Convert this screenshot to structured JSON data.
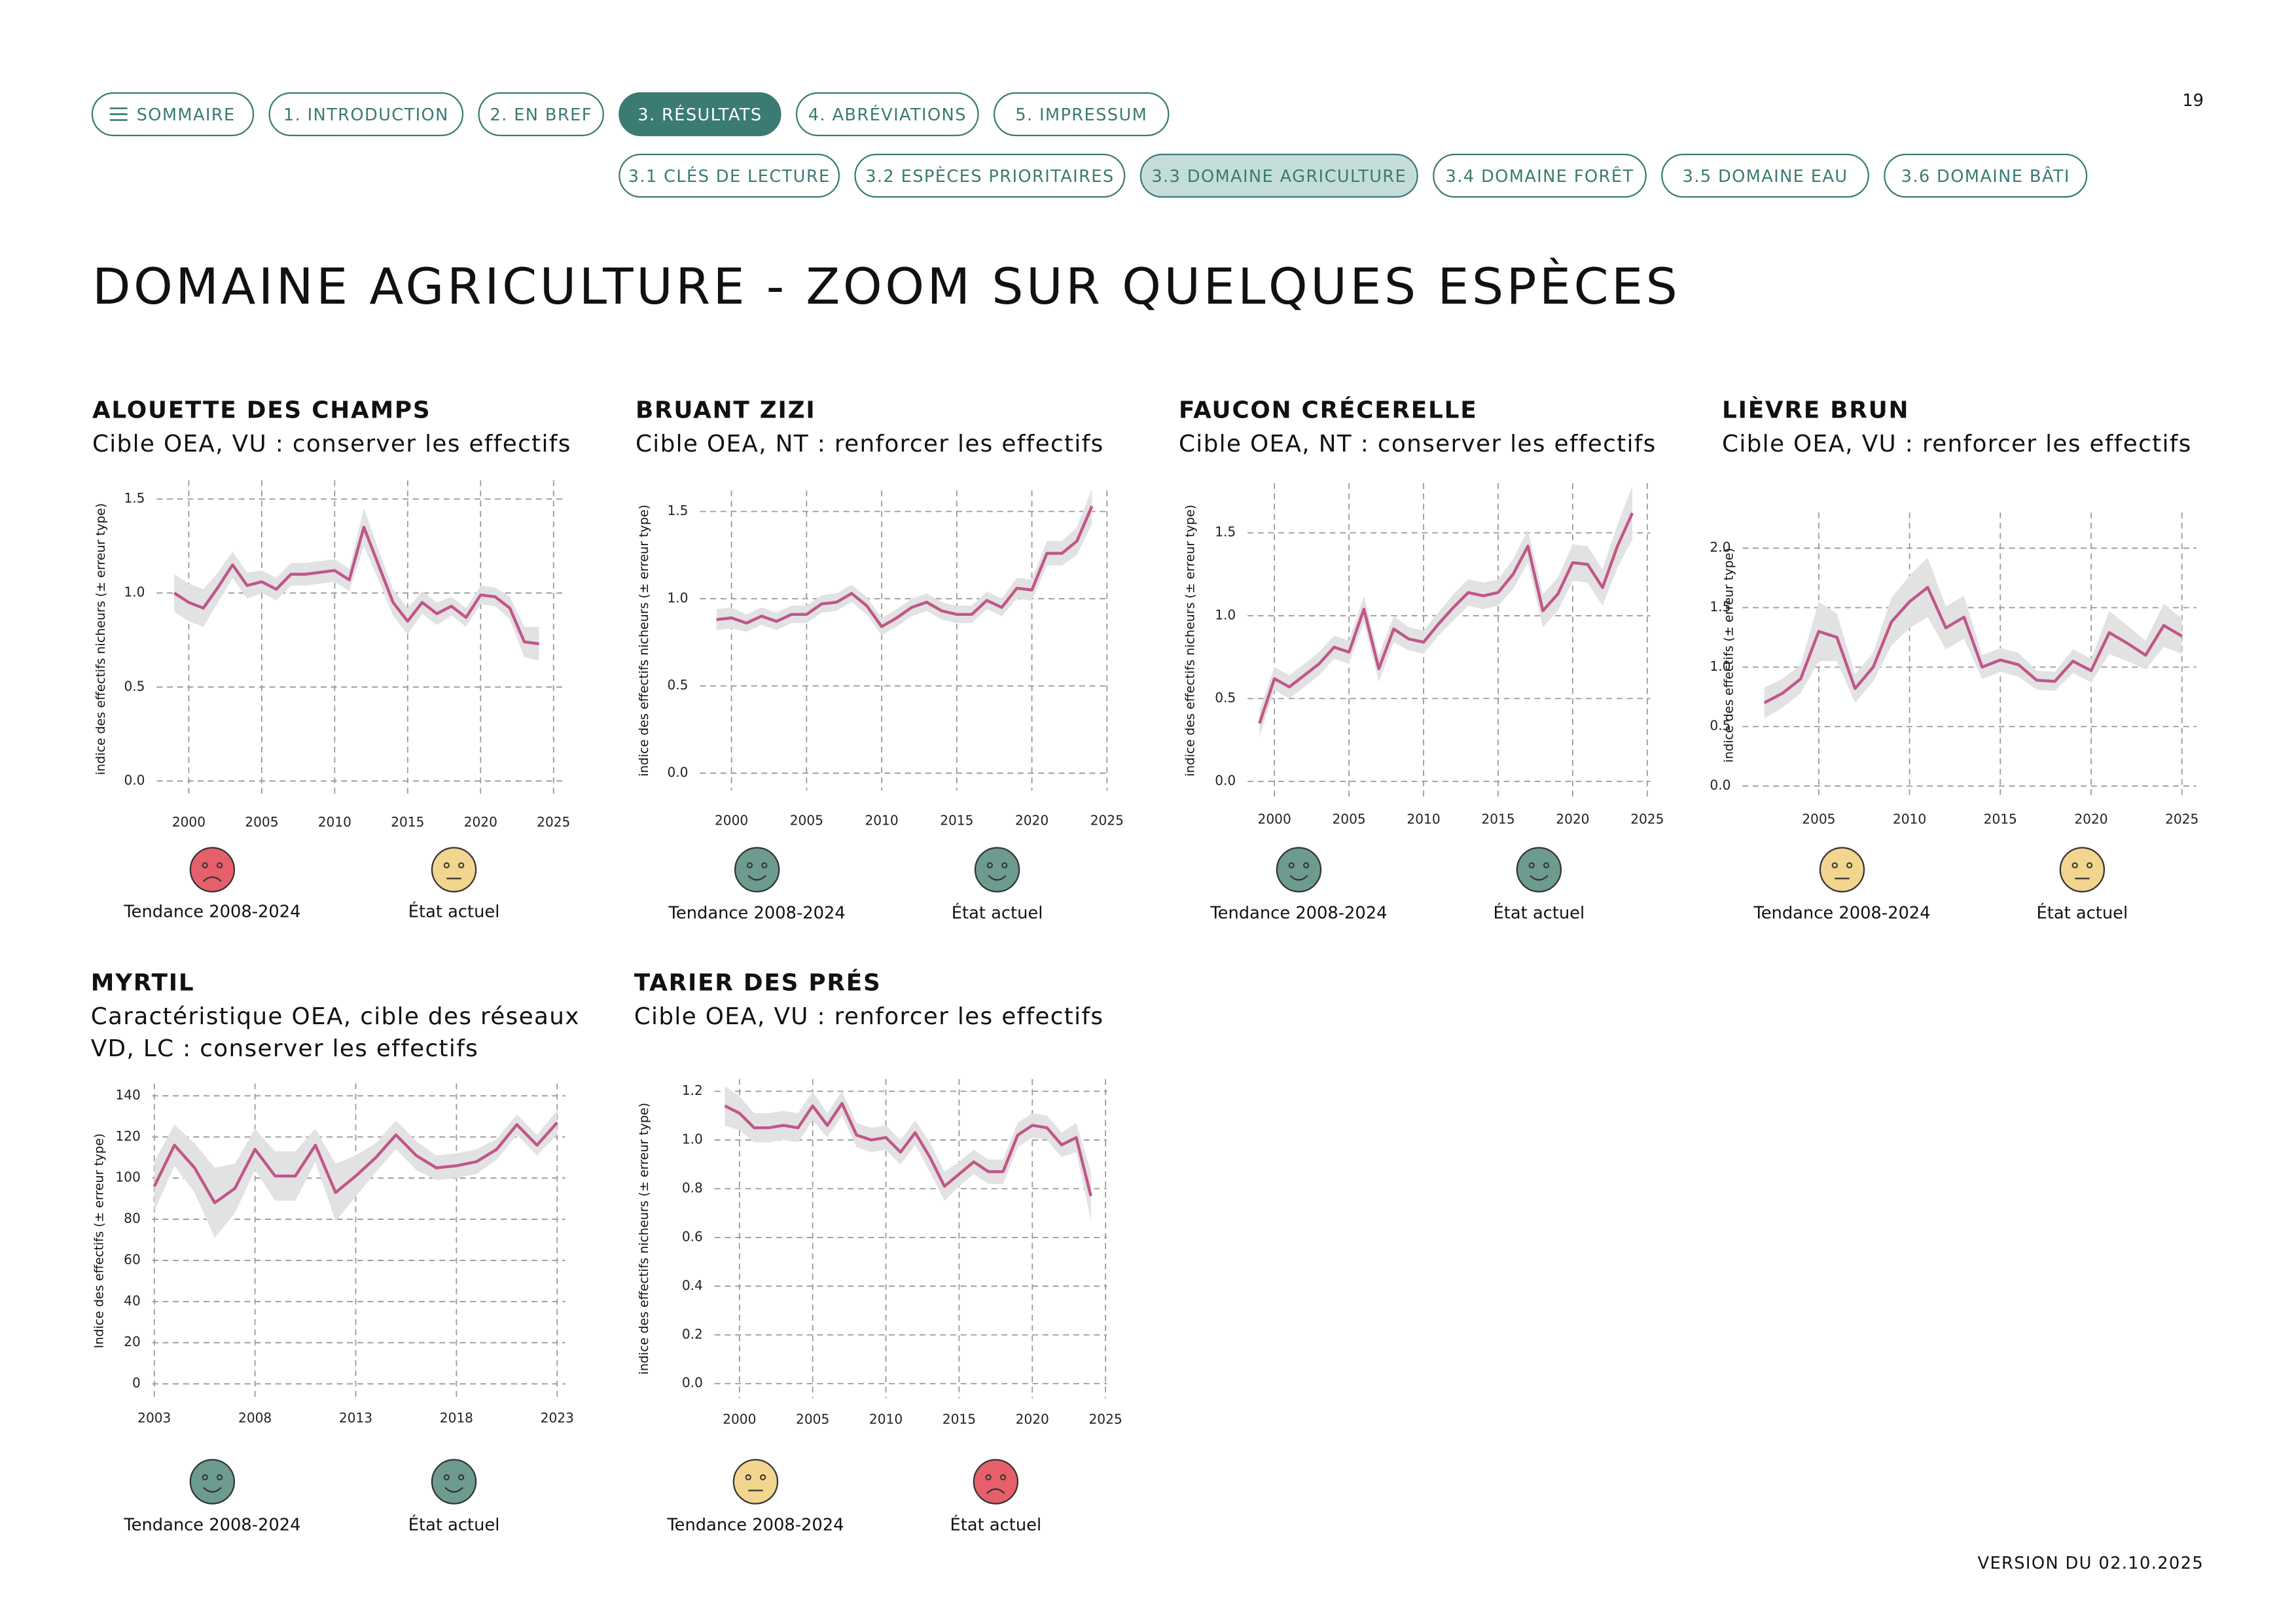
{
  "page_number": "19",
  "nav": {
    "main": [
      {
        "label": "SOMMAIRE",
        "active": false
      },
      {
        "label": "1. INTRODUCTION",
        "active": false
      },
      {
        "label": "2. EN BREF",
        "active": false
      },
      {
        "label": "3. RÉSULTATS",
        "active": true
      },
      {
        "label": "4. ABRÉVIATIONS",
        "active": false
      },
      {
        "label": "5. IMPRESSUM",
        "active": false
      }
    ],
    "sub": [
      {
        "label": "3.1 CLÉS DE LECTURE",
        "active": false
      },
      {
        "label": "3.2 ESPÈCES PRIORITAIRES",
        "active": false
      },
      {
        "label": "3.3 DOMAINE AGRICULTURE",
        "active": true
      },
      {
        "label": "3.4 DOMAINE FORÊT",
        "active": false
      },
      {
        "label": "3.5 DOMAINE EAU",
        "active": false
      },
      {
        "label": "3.6 DOMAINE BÂTI",
        "active": false
      }
    ]
  },
  "title": "DOMAINE AGRICULTURE - ZOOM SUR QUELQUES ESPÈCES",
  "footer": "VERSION DU 02.10.2025",
  "chart_data": [
    {
      "type": "line",
      "title": "ALOUETTE DES CHAMPS",
      "subtitle": [
        "Cible OEA, VU : conserver les effectifs"
      ],
      "y_label": "indice des effectifs nicheurs (± erreur type)",
      "color": "#c0568a",
      "band_color": "#e2e2e2",
      "grid": true,
      "x": [
        1999,
        2000,
        2001,
        2002,
        2003,
        2004,
        2005,
        2006,
        2007,
        2008,
        2009,
        2010,
        2011,
        2012,
        2013,
        2014,
        2015,
        2016,
        2017,
        2018,
        2019,
        2020,
        2021,
        2022,
        2023,
        2024
      ],
      "values": [
        1.0,
        0.95,
        0.92,
        1.03,
        1.15,
        1.04,
        1.06,
        1.02,
        1.1,
        1.1,
        1.11,
        1.12,
        1.07,
        1.35,
        1.15,
        0.95,
        0.85,
        0.95,
        0.89,
        0.93,
        0.87,
        0.99,
        0.98,
        0.92,
        0.74,
        0.73
      ],
      "errors": [
        0.1,
        0.1,
        0.1,
        0.08,
        0.07,
        0.07,
        0.06,
        0.06,
        0.06,
        0.06,
        0.06,
        0.06,
        0.06,
        0.1,
        0.08,
        0.07,
        0.07,
        0.06,
        0.06,
        0.05,
        0.05,
        0.05,
        0.05,
        0.06,
        0.08,
        0.09
      ],
      "xlim": [
        1997.8,
        2025.9
      ],
      "ylim": [
        -0.09,
        1.6
      ],
      "xticks": [
        2000,
        2005,
        2010,
        2015,
        2020,
        2025
      ],
      "yticks": [
        {
          "value": 0,
          "label": "0.0"
        },
        0.5,
        {
          "value": 1,
          "label": "1.0"
        },
        1.5
      ],
      "indicators": [
        {
          "label": "Tendance  2008-2024",
          "mood": "sad",
          "color": "#e5606a"
        },
        {
          "label": "État actuel",
          "mood": "neutral",
          "color": "#f2d58e"
        }
      ]
    },
    {
      "type": "line",
      "title": "BRUANT ZIZI",
      "subtitle": [
        "Cible OEA, NT : renforcer les effectifs"
      ],
      "y_label": "indice des effectifs nicheurs (± erreur type)",
      "color": "#c0568a",
      "band_color": "#e2e2e2",
      "grid": true,
      "x": [
        1999,
        2000,
        2001,
        2002,
        2003,
        2004,
        2005,
        2006,
        2007,
        2008,
        2009,
        2010,
        2011,
        2012,
        2013,
        2014,
        2015,
        2016,
        2017,
        2018,
        2019,
        2020,
        2021,
        2022,
        2023,
        2024
      ],
      "values": [
        0.88,
        0.89,
        0.86,
        0.9,
        0.87,
        0.91,
        0.91,
        0.97,
        0.98,
        1.03,
        0.96,
        0.84,
        0.89,
        0.95,
        0.98,
        0.93,
        0.91,
        0.91,
        0.99,
        0.95,
        1.06,
        1.05,
        1.26,
        1.26,
        1.33,
        1.53
      ],
      "errors": [
        0.06,
        0.06,
        0.05,
        0.05,
        0.05,
        0.05,
        0.05,
        0.05,
        0.05,
        0.05,
        0.05,
        0.05,
        0.05,
        0.05,
        0.05,
        0.05,
        0.05,
        0.05,
        0.05,
        0.05,
        0.06,
        0.06,
        0.07,
        0.07,
        0.08,
        0.1
      ],
      "xlim": [
        1997.9,
        2025.1
      ],
      "ylim": [
        -0.1,
        1.62
      ],
      "xticks": [
        2000,
        2005,
        2010,
        2015,
        2020,
        2025
      ],
      "yticks": [
        {
          "value": 0,
          "label": "0.0"
        },
        0.5,
        {
          "value": 1,
          "label": "1.0"
        },
        1.5
      ],
      "indicators": [
        {
          "label": "Tendance 2008-2024",
          "mood": "happy",
          "color": "#6d9b8f"
        },
        {
          "label": "État actuel",
          "mood": "happy",
          "color": "#6d9b8f"
        }
      ]
    },
    {
      "type": "line",
      "title": "FAUCON CRÉCERELLE",
      "subtitle": [
        "Cible OEA, NT : conserver les effectifs"
      ],
      "y_label": "indice des effectifs nicheurs (± erreur type)",
      "color": "#c0568a",
      "band_color": "#e2e2e2",
      "grid": true,
      "x": [
        1999,
        2000,
        2001,
        2002,
        2003,
        2004,
        2005,
        2006,
        2007,
        2008,
        2009,
        2010,
        2011,
        2012,
        2013,
        2014,
        2015,
        2016,
        2017,
        2018,
        2019,
        2020,
        2021,
        2022,
        2023,
        2024
      ],
      "values": [
        0.35,
        0.62,
        0.57,
        0.64,
        0.71,
        0.81,
        0.78,
        1.04,
        0.68,
        0.92,
        0.86,
        0.84,
        0.95,
        1.05,
        1.14,
        1.12,
        1.14,
        1.25,
        1.42,
        1.03,
        1.13,
        1.32,
        1.31,
        1.17,
        1.42,
        1.62
      ],
      "errors": [
        0.08,
        0.07,
        0.07,
        0.07,
        0.07,
        0.07,
        0.07,
        0.08,
        0.08,
        0.08,
        0.07,
        0.07,
        0.07,
        0.08,
        0.08,
        0.08,
        0.08,
        0.09,
        0.1,
        0.1,
        0.1,
        0.11,
        0.11,
        0.11,
        0.13,
        0.16
      ],
      "xlim": [
        1998.2,
        2025.2
      ],
      "ylim": [
        -0.1,
        1.8
      ],
      "xticks": [
        2000,
        2005,
        2010,
        2015,
        2020,
        2025
      ],
      "yticks": [
        {
          "value": 0,
          "label": "0.0"
        },
        0.5,
        {
          "value": 1,
          "label": "1.0"
        },
        1.5
      ],
      "indicators": [
        {
          "label": "Tendance 2008-2024",
          "mood": "happy",
          "color": "#6d9b8f"
        },
        {
          "label": "État actuel",
          "mood": "happy",
          "color": "#6d9b8f"
        }
      ]
    },
    {
      "type": "line",
      "title": "LIÈVRE BRUN",
      "subtitle": [
        "Cible OEA, VU : renforcer les effectifs"
      ],
      "y_label": "indice des effectifs (± erreur type)",
      "color": "#c0568a",
      "band_color": "#e2e2e2",
      "grid": true,
      "x": [
        2002,
        2003,
        2004,
        2005,
        2006,
        2007,
        2008,
        2009,
        2010,
        2011,
        2012,
        2013,
        2014,
        2015,
        2016,
        2017,
        2018,
        2019,
        2020,
        2021,
        2022,
        2023,
        2024,
        2025
      ],
      "values": [
        0.7,
        0.78,
        0.9,
        1.3,
        1.25,
        0.82,
        1.0,
        1.38,
        1.55,
        1.67,
        1.33,
        1.42,
        1.0,
        1.06,
        1.02,
        0.89,
        0.88,
        1.05,
        0.97,
        1.29,
        1.2,
        1.1,
        1.35,
        1.26
      ],
      "errors": [
        0.13,
        0.12,
        0.12,
        0.25,
        0.2,
        0.12,
        0.12,
        0.2,
        0.22,
        0.25,
        0.18,
        0.18,
        0.1,
        0.1,
        0.1,
        0.08,
        0.08,
        0.1,
        0.1,
        0.18,
        0.15,
        0.12,
        0.18,
        0.15
      ],
      "xlim": [
        2000.8,
        2025.8
      ],
      "ylim": [
        -0.1,
        2.3
      ],
      "xticks": [
        2005,
        2010,
        2015,
        2020,
        2025
      ],
      "yticks": [
        {
          "value": 0,
          "label": "0.0"
        },
        0.5,
        {
          "value": 1,
          "label": "1.0"
        },
        1.5,
        {
          "value": 2,
          "label": "2.0"
        }
      ],
      "indicators": [
        {
          "label": "Tendance 2008-2024",
          "mood": "neutral",
          "color": "#f2d58e"
        },
        {
          "label": "État actuel",
          "mood": "neutral",
          "color": "#f2d58e"
        }
      ]
    },
    {
      "type": "line",
      "title": "MYRTIL",
      "subtitle": [
        "Caractéristique OEA, cible des réseaux",
        "VD, LC : conserver les effectifs"
      ],
      "y_label": "Indice des effectifs (± erreur type)",
      "color": "#c0568a",
      "band_color": "#e2e2e2",
      "grid": true,
      "x": [
        2003,
        2004,
        2005,
        2006,
        2007,
        2008,
        2009,
        2010,
        2011,
        2012,
        2013,
        2014,
        2015,
        2016,
        2017,
        2018,
        2019,
        2020,
        2021,
        2022,
        2023
      ],
      "values": [
        96,
        116,
        105,
        88,
        95,
        114,
        101,
        101,
        116,
        93,
        101,
        110,
        121,
        111,
        105,
        106,
        108,
        114,
        126,
        116,
        127
      ],
      "errors": [
        12,
        10,
        12,
        17,
        12,
        10,
        12,
        12,
        8,
        14,
        10,
        7,
        7,
        7,
        6,
        6,
        6,
        5,
        5,
        5,
        6
      ],
      "xlim": [
        2002.9,
        2023.4
      ],
      "ylim": [
        -7,
        146
      ],
      "xticks": [
        2003,
        2008,
        2013,
        2018,
        2023
      ],
      "yticks": [
        0,
        20,
        40,
        60,
        80,
        100,
        120,
        140
      ],
      "indicators": [
        {
          "label": "Tendance 2008-2024",
          "mood": "happy",
          "color": "#6d9b8f"
        },
        {
          "label": "État actuel",
          "mood": "happy",
          "color": "#6d9b8f"
        }
      ]
    },
    {
      "type": "line",
      "title": "TARIER DES PRÉS",
      "subtitle": [
        "Cible OEA, VU : renforcer les effectifs"
      ],
      "y_label": "indice des effectifs nicheurs (± erreur type)",
      "color": "#c0568a",
      "band_color": "#e2e2e2",
      "grid": true,
      "x": [
        1999,
        2000,
        2001,
        2002,
        2003,
        2004,
        2005,
        2006,
        2007,
        2008,
        2009,
        2010,
        2011,
        2012,
        2013,
        2014,
        2015,
        2016,
        2017,
        2018,
        2019,
        2020,
        2021,
        2022,
        2023,
        2024
      ],
      "values": [
        1.14,
        1.11,
        1.05,
        1.05,
        1.06,
        1.05,
        1.14,
        1.06,
        1.15,
        1.02,
        1.0,
        1.01,
        0.95,
        1.03,
        0.93,
        0.81,
        0.86,
        0.91,
        0.87,
        0.87,
        1.02,
        1.06,
        1.05,
        0.98,
        1.01,
        0.77
      ],
      "errors": [
        0.08,
        0.07,
        0.06,
        0.06,
        0.06,
        0.06,
        0.06,
        0.05,
        0.05,
        0.05,
        0.05,
        0.05,
        0.05,
        0.05,
        0.06,
        0.06,
        0.05,
        0.05,
        0.05,
        0.05,
        0.05,
        0.05,
        0.05,
        0.05,
        0.06,
        0.1
      ],
      "xlim": [
        1998.3,
        2025.1
      ],
      "ylim": [
        -0.06,
        1.25
      ],
      "xticks": [
        2000,
        2005,
        2010,
        2015,
        2020,
        2025
      ],
      "yticks": [
        {
          "value": 0,
          "label": "0.0"
        },
        0.2,
        0.4,
        0.6,
        0.8,
        {
          "value": 1,
          "label": "1.0"
        },
        1.2
      ],
      "indicators": [
        {
          "label": "Tendance 2008-2024",
          "mood": "neutral",
          "color": "#f2d58e"
        },
        {
          "label": "État actuel",
          "mood": "sad",
          "color": "#e5606a"
        }
      ]
    }
  ]
}
